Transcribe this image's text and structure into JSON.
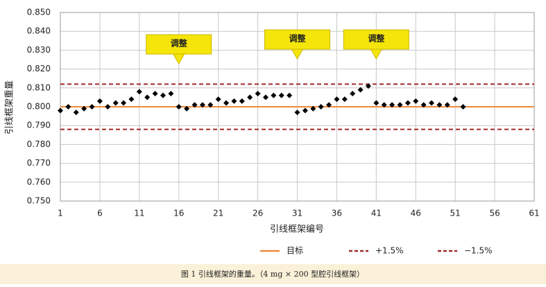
{
  "chart_data": {
    "type": "scatter",
    "y_label": "引线框架重量",
    "x_label": "引线框架编号",
    "caption": "图 1 引线框架的重量。（4 mg × 200 型腔引线框架）",
    "x": [
      1,
      2,
      3,
      4,
      5,
      6,
      7,
      8,
      9,
      10,
      11,
      12,
      13,
      14,
      15,
      16,
      17,
      18,
      19,
      20,
      21,
      22,
      23,
      24,
      25,
      26,
      27,
      28,
      29,
      30,
      31,
      32,
      33,
      34,
      35,
      36,
      37,
      38,
      39,
      40,
      41,
      42,
      43,
      44,
      45,
      46,
      47,
      48,
      49,
      50,
      51,
      52
    ],
    "series": [
      {
        "color": "#000000",
        "values": [
          0.798,
          0.8,
          0.797,
          0.799,
          0.8,
          0.803,
          0.8,
          0.802,
          0.802,
          0.804,
          0.808,
          0.805,
          0.807,
          0.806,
          0.807,
          0.8,
          0.799,
          0.801,
          0.801,
          0.801,
          0.804,
          0.802,
          0.803,
          0.803,
          0.805,
          0.807,
          0.805,
          0.806,
          0.806,
          0.806,
          0.797,
          0.798,
          0.799,
          0.8,
          0.801,
          0.804,
          0.804,
          0.807,
          0.809,
          0.811,
          0.802,
          0.801,
          0.801,
          0.801,
          0.802,
          0.803,
          0.801,
          0.802,
          0.801,
          0.801,
          0.804,
          0.8
        ]
      }
    ],
    "lines": [
      {
        "name": "目标",
        "value": 0.8,
        "color": "#f08a3c",
        "dashed": false
      },
      {
        "name": "+1.5%",
        "value": 0.812,
        "color": "#a0282a",
        "dashed": true
      },
      {
        "name": "−1.5%",
        "value": 0.788,
        "color": "#a0282a",
        "dashed": true
      }
    ],
    "annotations": [
      {
        "text": "调整",
        "x": 16
      },
      {
        "text": "调整",
        "x": 31
      },
      {
        "text": "调整",
        "x": 41
      }
    ],
    "xlim": [
      1,
      61
    ],
    "xticks": [
      1,
      6,
      11,
      16,
      21,
      26,
      31,
      36,
      41,
      46,
      51,
      56,
      61
    ],
    "ylim": [
      0.75,
      0.85
    ],
    "yticks": [
      {
        "value": 0.75,
        "label": "0.750"
      },
      {
        "value": 0.76,
        "label": "0.760"
      },
      {
        "value": 0.77,
        "label": "0.770"
      },
      {
        "value": 0.78,
        "label": "0.780"
      },
      {
        "value": 0.79,
        "label": "0.790"
      },
      {
        "value": 0.8,
        "label": "0.800"
      },
      {
        "value": 0.81,
        "label": "0.810"
      },
      {
        "value": 0.82,
        "label": "0.820"
      },
      {
        "value": 0.83,
        "label": "0.830"
      },
      {
        "value": 0.84,
        "label": "0.840"
      },
      {
        "value": 0.85,
        "label": "0.850"
      }
    ],
    "grid": true
  }
}
